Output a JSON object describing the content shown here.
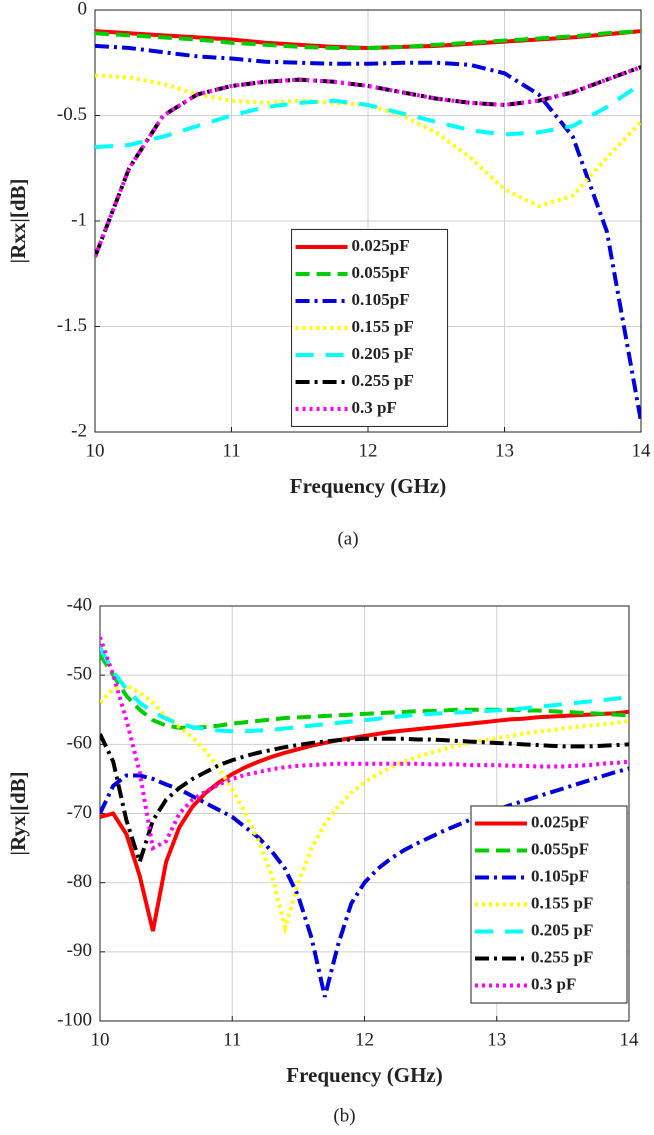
{
  "chart_data": [
    {
      "type": "line",
      "x_label": "Frequency (GHz)",
      "y_label": "|Rxx|[dB]",
      "caption": "(a)",
      "x": [
        10,
        10.25,
        10.5,
        10.75,
        11,
        11.25,
        11.5,
        11.75,
        12,
        12.25,
        12.5,
        12.75,
        13,
        13.25,
        13.5,
        13.75,
        14
      ],
      "xlim": [
        10,
        14
      ],
      "xticks": [
        10,
        11,
        12,
        13,
        14
      ],
      "ylim": [
        -2,
        0
      ],
      "yticks": [
        0,
        -0.5,
        -1,
        -1.5,
        -2
      ],
      "grid": true,
      "legend": "center",
      "series": [
        {
          "name": "0.025pF",
          "color": "#ff0000",
          "dash": "solid",
          "values": [
            -0.1,
            -0.11,
            -0.12,
            -0.13,
            -0.14,
            -0.155,
            -0.165,
            -0.175,
            -0.18,
            -0.175,
            -0.17,
            -0.16,
            -0.15,
            -0.14,
            -0.13,
            -0.115,
            -0.1
          ]
        },
        {
          "name": "0.055pF",
          "color": "#00cc00",
          "dash": "dashed",
          "values": [
            -0.11,
            -0.12,
            -0.13,
            -0.14,
            -0.155,
            -0.165,
            -0.175,
            -0.18,
            -0.18,
            -0.175,
            -0.165,
            -0.155,
            -0.145,
            -0.135,
            -0.125,
            -0.11,
            -0.1
          ]
        },
        {
          "name": "0.105pF",
          "color": "#0000dd",
          "dash": "dashdot",
          "values": [
            -0.17,
            -0.18,
            -0.2,
            -0.22,
            -0.23,
            -0.245,
            -0.25,
            -0.255,
            -0.255,
            -0.25,
            -0.25,
            -0.26,
            -0.3,
            -0.4,
            -0.6,
            -1.05,
            -1.95
          ]
        },
        {
          "name": "0.155 pF",
          "color": "#ffff00",
          "dash": "dotted",
          "values": [
            -0.31,
            -0.32,
            -0.35,
            -0.4,
            -0.43,
            -0.44,
            -0.43,
            -0.44,
            -0.45,
            -0.5,
            -0.58,
            -0.7,
            -0.85,
            -0.93,
            -0.88,
            -0.7,
            -0.53
          ]
        },
        {
          "name": "0.205 pF",
          "color": "#00ffff",
          "dash": "longdash",
          "values": [
            -0.65,
            -0.64,
            -0.6,
            -0.55,
            -0.5,
            -0.46,
            -0.44,
            -0.43,
            -0.45,
            -0.49,
            -0.53,
            -0.57,
            -0.59,
            -0.58,
            -0.55,
            -0.46,
            -0.35
          ]
        },
        {
          "name": "0.255 pF",
          "color": "#000000",
          "dash": "dashdot",
          "values": [
            -1.17,
            -0.75,
            -0.5,
            -0.4,
            -0.36,
            -0.34,
            -0.33,
            -0.34,
            -0.36,
            -0.39,
            -0.42,
            -0.44,
            -0.45,
            -0.43,
            -0.39,
            -0.33,
            -0.27
          ]
        },
        {
          "name": "0.3 pF",
          "color": "#ff00ff",
          "dash": "dotted",
          "values": [
            -1.17,
            -0.75,
            -0.5,
            -0.4,
            -0.36,
            -0.34,
            -0.33,
            -0.34,
            -0.36,
            -0.39,
            -0.42,
            -0.44,
            -0.45,
            -0.43,
            -0.39,
            -0.33,
            -0.27
          ]
        }
      ]
    },
    {
      "type": "line",
      "x_label": "Frequency (GHz)",
      "y_label": "|Ryx|[dB]",
      "caption": "(b)",
      "x": [
        10,
        10.1,
        10.2,
        10.3,
        10.4,
        10.5,
        10.6,
        10.7,
        10.8,
        10.9,
        11,
        11.1,
        11.2,
        11.3,
        11.4,
        11.5,
        11.6,
        11.7,
        11.8,
        11.9,
        12,
        12.1,
        12.2,
        12.3,
        12.4,
        12.5,
        12.6,
        12.7,
        12.8,
        12.9,
        13,
        13.1,
        13.2,
        13.3,
        13.4,
        13.5,
        13.6,
        13.7,
        13.8,
        13.9,
        14
      ],
      "xlim": [
        10,
        14
      ],
      "xticks": [
        10,
        11,
        12,
        13,
        14
      ],
      "ylim": [
        -100,
        -40
      ],
      "yticks": [
        -40,
        -50,
        -60,
        -70,
        -80,
        -90,
        -100
      ],
      "grid": true,
      "legend": "lower right",
      "series": [
        {
          "name": "0.025pF",
          "color": "#ff0000",
          "dash": "solid",
          "values": [
            -70.5,
            -70,
            -73,
            -79,
            -87,
            -77,
            -72,
            -69,
            -67,
            -65.5,
            -64.3,
            -63.3,
            -62.5,
            -61.8,
            -61.2,
            -60.7,
            -60.2,
            -59.8,
            -59.4,
            -59.1,
            -58.8,
            -58.5,
            -58.2,
            -58,
            -57.8,
            -57.6,
            -57.4,
            -57.2,
            -57,
            -56.8,
            -56.6,
            -56.4,
            -56.3,
            -56.1,
            -56,
            -55.9,
            -55.8,
            -55.7,
            -55.6,
            -55.5,
            -55.3
          ]
        },
        {
          "name": "0.055pF",
          "color": "#00cc00",
          "dash": "dashed",
          "values": [
            -47,
            -50,
            -53,
            -55,
            -56.5,
            -57.3,
            -57.6,
            -57.6,
            -57.5,
            -57.3,
            -57,
            -56.8,
            -56.6,
            -56.4,
            -56.2,
            -56.1,
            -56,
            -55.9,
            -55.8,
            -55.7,
            -55.6,
            -55.5,
            -55.4,
            -55.3,
            -55.2,
            -55.2,
            -55.1,
            -55,
            -55,
            -55,
            -55,
            -55,
            -55.1,
            -55.1,
            -55.2,
            -55.3,
            -55.4,
            -55.5,
            -55.6,
            -55.7,
            -55.8
          ]
        },
        {
          "name": "0.105pF",
          "color": "#0000dd",
          "dash": "dashdot",
          "values": [
            -70,
            -66,
            -64.5,
            -64.5,
            -65,
            -65.8,
            -66.5,
            -67.5,
            -68.5,
            -69.5,
            -70.5,
            -72,
            -73.5,
            -75.5,
            -78,
            -82,
            -88,
            -96.5,
            -89,
            -83,
            -80,
            -78,
            -76.5,
            -75.3,
            -74.3,
            -73.4,
            -72.5,
            -71.7,
            -70.9,
            -70.2,
            -69.5,
            -68.8,
            -68.2,
            -67.6,
            -67,
            -66.4,
            -65.8,
            -65.2,
            -64.6,
            -64,
            -63.5
          ]
        },
        {
          "name": "0.155 pF",
          "color": "#ffff00",
          "dash": "dotted",
          "values": [
            -54,
            -52,
            -51.5,
            -52.5,
            -54,
            -56,
            -57.5,
            -59,
            -61,
            -63.5,
            -66.5,
            -70,
            -74,
            -79,
            -86.5,
            -80,
            -75,
            -71.5,
            -69,
            -67,
            -65.5,
            -64.3,
            -63.3,
            -62.5,
            -61.8,
            -61.2,
            -60.7,
            -60.2,
            -59.8,
            -59.4,
            -59.1,
            -58.8,
            -58.5,
            -58.2,
            -58,
            -57.7,
            -57.5,
            -57.3,
            -57.1,
            -56.9,
            -56.6
          ]
        },
        {
          "name": "0.205 pF",
          "color": "#00ffff",
          "dash": "longdash",
          "values": [
            -46,
            -49.5,
            -52,
            -54,
            -55.3,
            -56.3,
            -57,
            -57.5,
            -57.8,
            -58,
            -58.1,
            -58.1,
            -58,
            -57.9,
            -57.7,
            -57.5,
            -57.3,
            -57.1,
            -56.9,
            -56.7,
            -56.5,
            -56.3,
            -56.1,
            -55.9,
            -55.7,
            -55.6,
            -55.5,
            -55.4,
            -55.3,
            -55.2,
            -55.1,
            -55,
            -54.8,
            -54.6,
            -54.4,
            -54.2,
            -54,
            -53.8,
            -53.6,
            -53.4,
            -53.2
          ]
        },
        {
          "name": "0.255 pF",
          "color": "#000000",
          "dash": "dashdot",
          "values": [
            -58.5,
            -62.5,
            -71,
            -77,
            -71,
            -68,
            -66.3,
            -65,
            -64,
            -63,
            -62.3,
            -61.7,
            -61.2,
            -60.8,
            -60.4,
            -60.1,
            -59.8,
            -59.6,
            -59.4,
            -59.3,
            -59.2,
            -59.2,
            -59.2,
            -59.2,
            -59.3,
            -59.3,
            -59.4,
            -59.5,
            -59.6,
            -59.7,
            -59.8,
            -59.9,
            -60,
            -60.1,
            -60.2,
            -60.3,
            -60.3,
            -60.3,
            -60.2,
            -60.1,
            -60
          ]
        },
        {
          "name": "0.3 pF",
          "color": "#ff00ff",
          "dash": "dotted",
          "values": [
            -44.5,
            -50,
            -56.5,
            -64,
            -75,
            -74,
            -70,
            -68,
            -66.8,
            -65.8,
            -65,
            -64.4,
            -64,
            -63.6,
            -63.3,
            -63.1,
            -63,
            -62.9,
            -62.8,
            -62.8,
            -62.8,
            -62.8,
            -62.8,
            -62.8,
            -62.8,
            -62.9,
            -62.9,
            -62.9,
            -63,
            -63,
            -63,
            -63.1,
            -63.1,
            -63.2,
            -63.2,
            -63.2,
            -63.1,
            -63,
            -62.8,
            -62.7,
            -62.5
          ]
        }
      ]
    }
  ]
}
